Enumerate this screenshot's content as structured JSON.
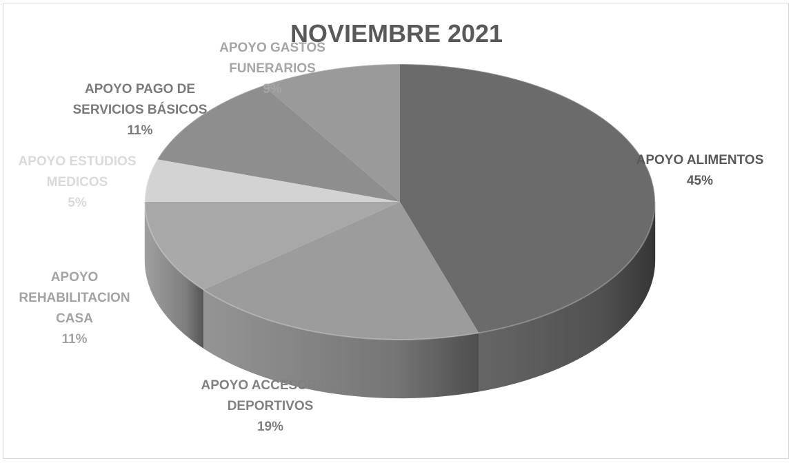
{
  "chart_data": {
    "type": "pie3d",
    "title": "NOVIEMBRE 2021",
    "categories": [
      "APOYO ALIMENTOS",
      "APOYO ACCESORIOS DEPORTIVOS",
      "APOYO REHABILITACION CASA",
      "APOYO ESTUDIOS MEDICOS",
      "APOYO PAGO DE SERVICIOS BÁSICOS",
      "APOYO GASTOS FUNERARIOS"
    ],
    "values": [
      45,
      19,
      11,
      5,
      11,
      9
    ],
    "value_labels": [
      "45%",
      "19%",
      "11%",
      "5%",
      "11%",
      "9%"
    ],
    "colors": [
      "#6b6b6b",
      "#9c9c9c",
      "#a8a8a8",
      "#d3d3d3",
      "#8e8e8e",
      "#9a9a9a"
    ],
    "label_colors": [
      "#595959",
      "#808080",
      "#a3a3a3",
      "#dadada",
      "#7a7a7a",
      "#a6a6a6"
    ]
  }
}
